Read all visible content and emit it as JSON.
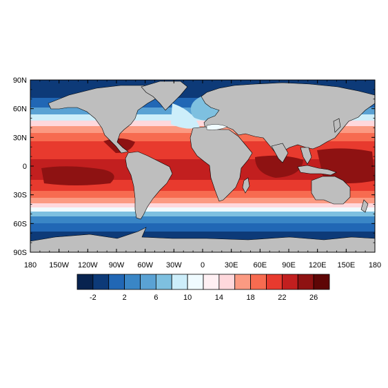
{
  "map": {
    "lat_labels": [
      "90N",
      "60N",
      "30N",
      "0",
      "30S",
      "60S",
      "90S"
    ],
    "lon_labels": [
      "180",
      "150W",
      "120W",
      "90W",
      "60W",
      "30W",
      "0",
      "30E",
      "60E",
      "90E",
      "120E",
      "150E",
      "180"
    ],
    "land_color": "#bebebe",
    "frame_color": "#000000"
  },
  "colorbar": {
    "labels": [
      "-2",
      "2",
      "6",
      "10",
      "14",
      "18",
      "22",
      "26"
    ],
    "colors": [
      "#08234f",
      "#0d3a78",
      "#2167b5",
      "#3a86c6",
      "#5aa2d4",
      "#7ec0e0",
      "#cdeefa",
      "#f0fbff",
      "#fff0f3",
      "#ffd8dc",
      "#fb9a82",
      "#f76b50",
      "#e83a2e",
      "#c21f1f",
      "#8e1212",
      "#5e0606"
    ]
  }
}
